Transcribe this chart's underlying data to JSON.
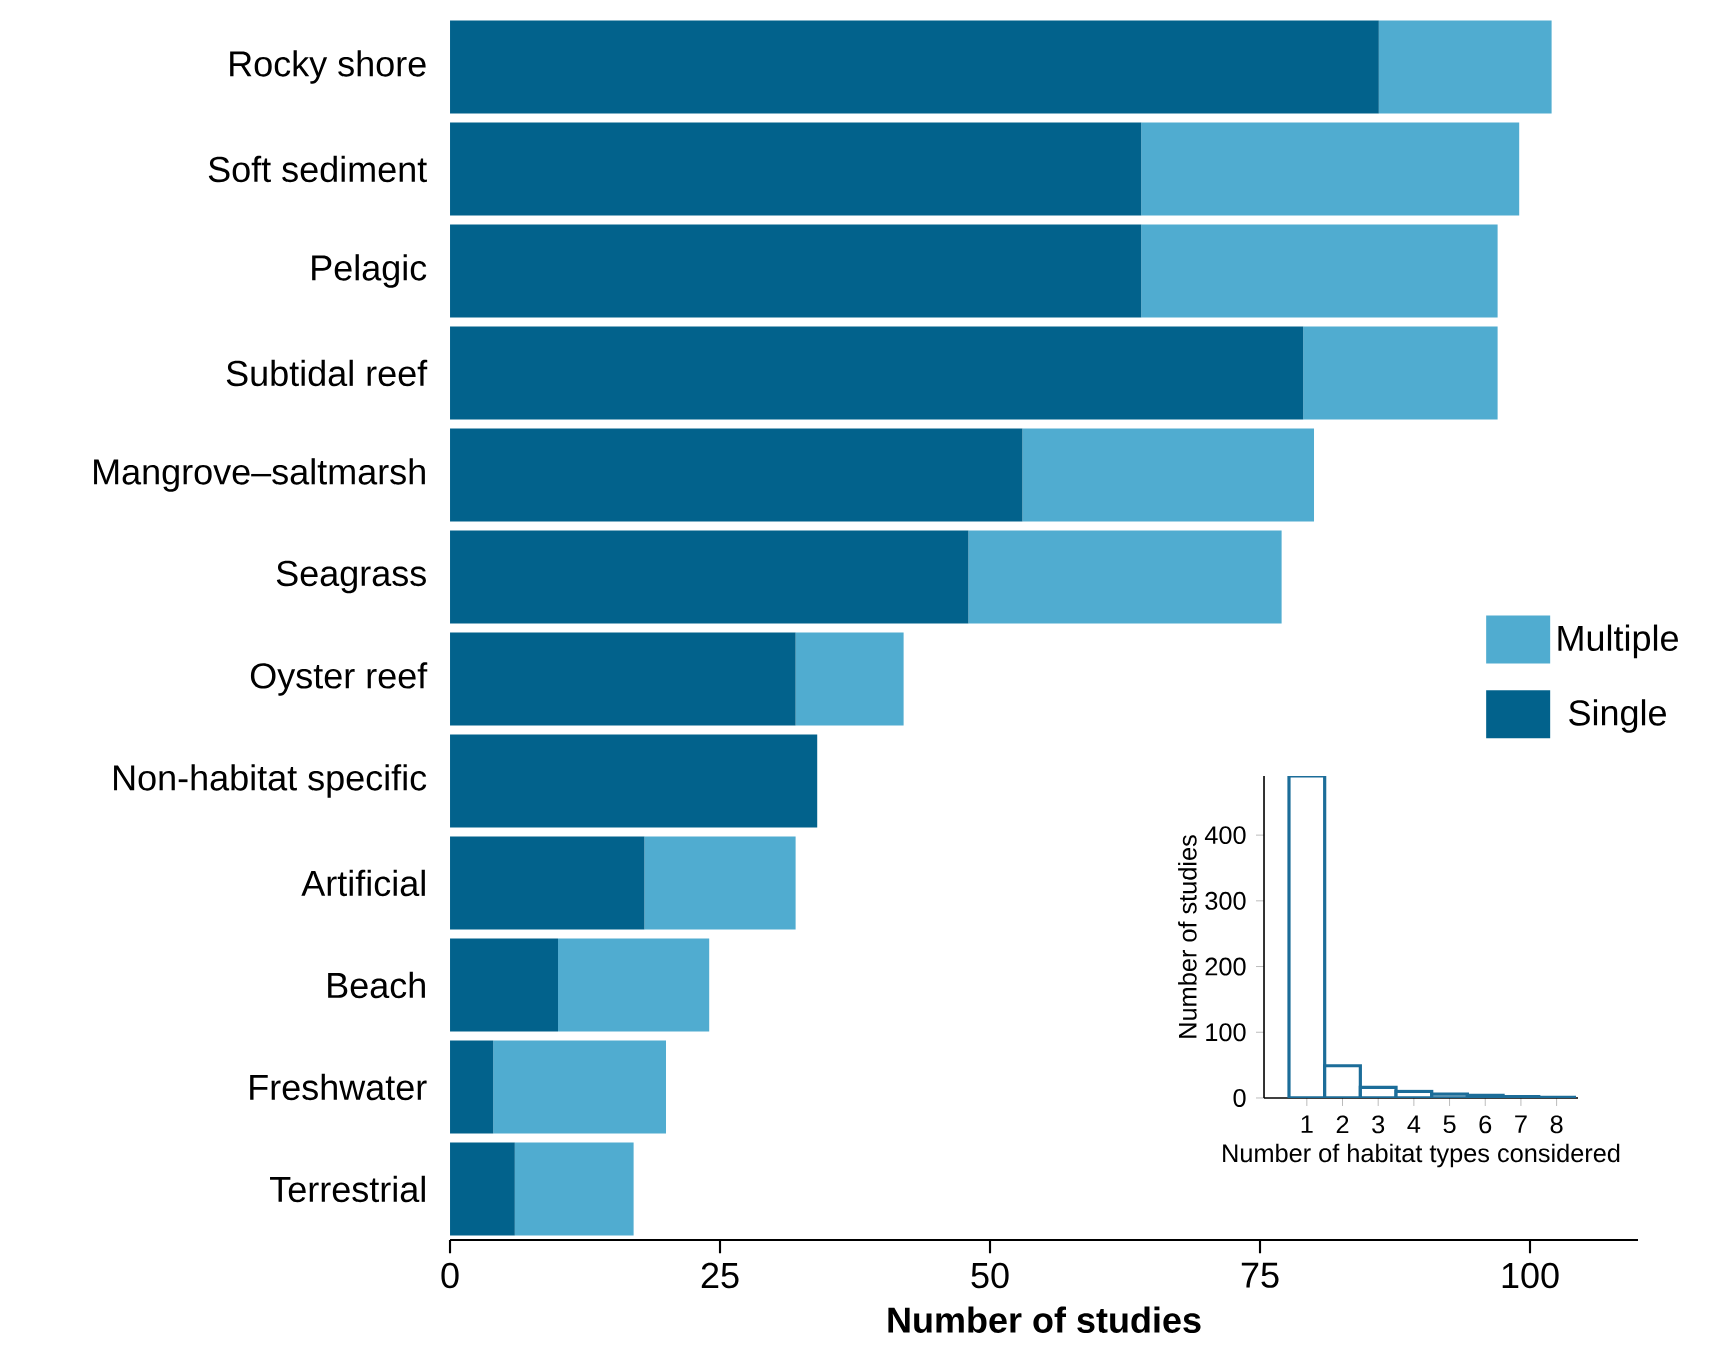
{
  "chart_data": [
    {
      "type": "bar",
      "orientation": "horizontal",
      "stacked": true,
      "categories": [
        "Rocky shore",
        "Soft sediment",
        "Pelagic",
        "Subtidal reef",
        "Mangrove–saltmarsh",
        "Seagrass",
        "Oyster reef",
        "Non-habitat specific",
        "Artificial",
        "Beach",
        "Freshwater",
        "Terrestrial"
      ],
      "series": [
        {
          "name": "Single",
          "color": "#02628c",
          "values": [
            86,
            64,
            64,
            79,
            53,
            48,
            32,
            34,
            18,
            10,
            4,
            6
          ]
        },
        {
          "name": "Multiple",
          "color": "#50acd0",
          "values": [
            16,
            35,
            33,
            18,
            27,
            29,
            10,
            0,
            14,
            14,
            16,
            11
          ]
        }
      ],
      "xlim": [
        0,
        110
      ],
      "xticks": [
        0,
        25,
        50,
        75,
        100
      ],
      "xlabel": "Number of studies",
      "legend": "right"
    },
    {
      "type": "histogram",
      "bins": [
        0.5,
        1.5,
        2.5,
        3.5,
        4.5,
        5.5,
        6.5,
        7.5,
        8.5
      ],
      "values": [
        490,
        49,
        16,
        10,
        6,
        4,
        2,
        1
      ],
      "color": "#1c6d99",
      "xlim": [
        -0.2,
        8.6
      ],
      "ylim": [
        0,
        490
      ],
      "xticks": [
        1,
        2,
        3,
        4,
        5,
        6,
        7,
        8
      ],
      "yticks": [
        0,
        100,
        200,
        300,
        400
      ],
      "xlabel": "Number of habitat types considered",
      "ylabel": "Number of studies"
    }
  ]
}
